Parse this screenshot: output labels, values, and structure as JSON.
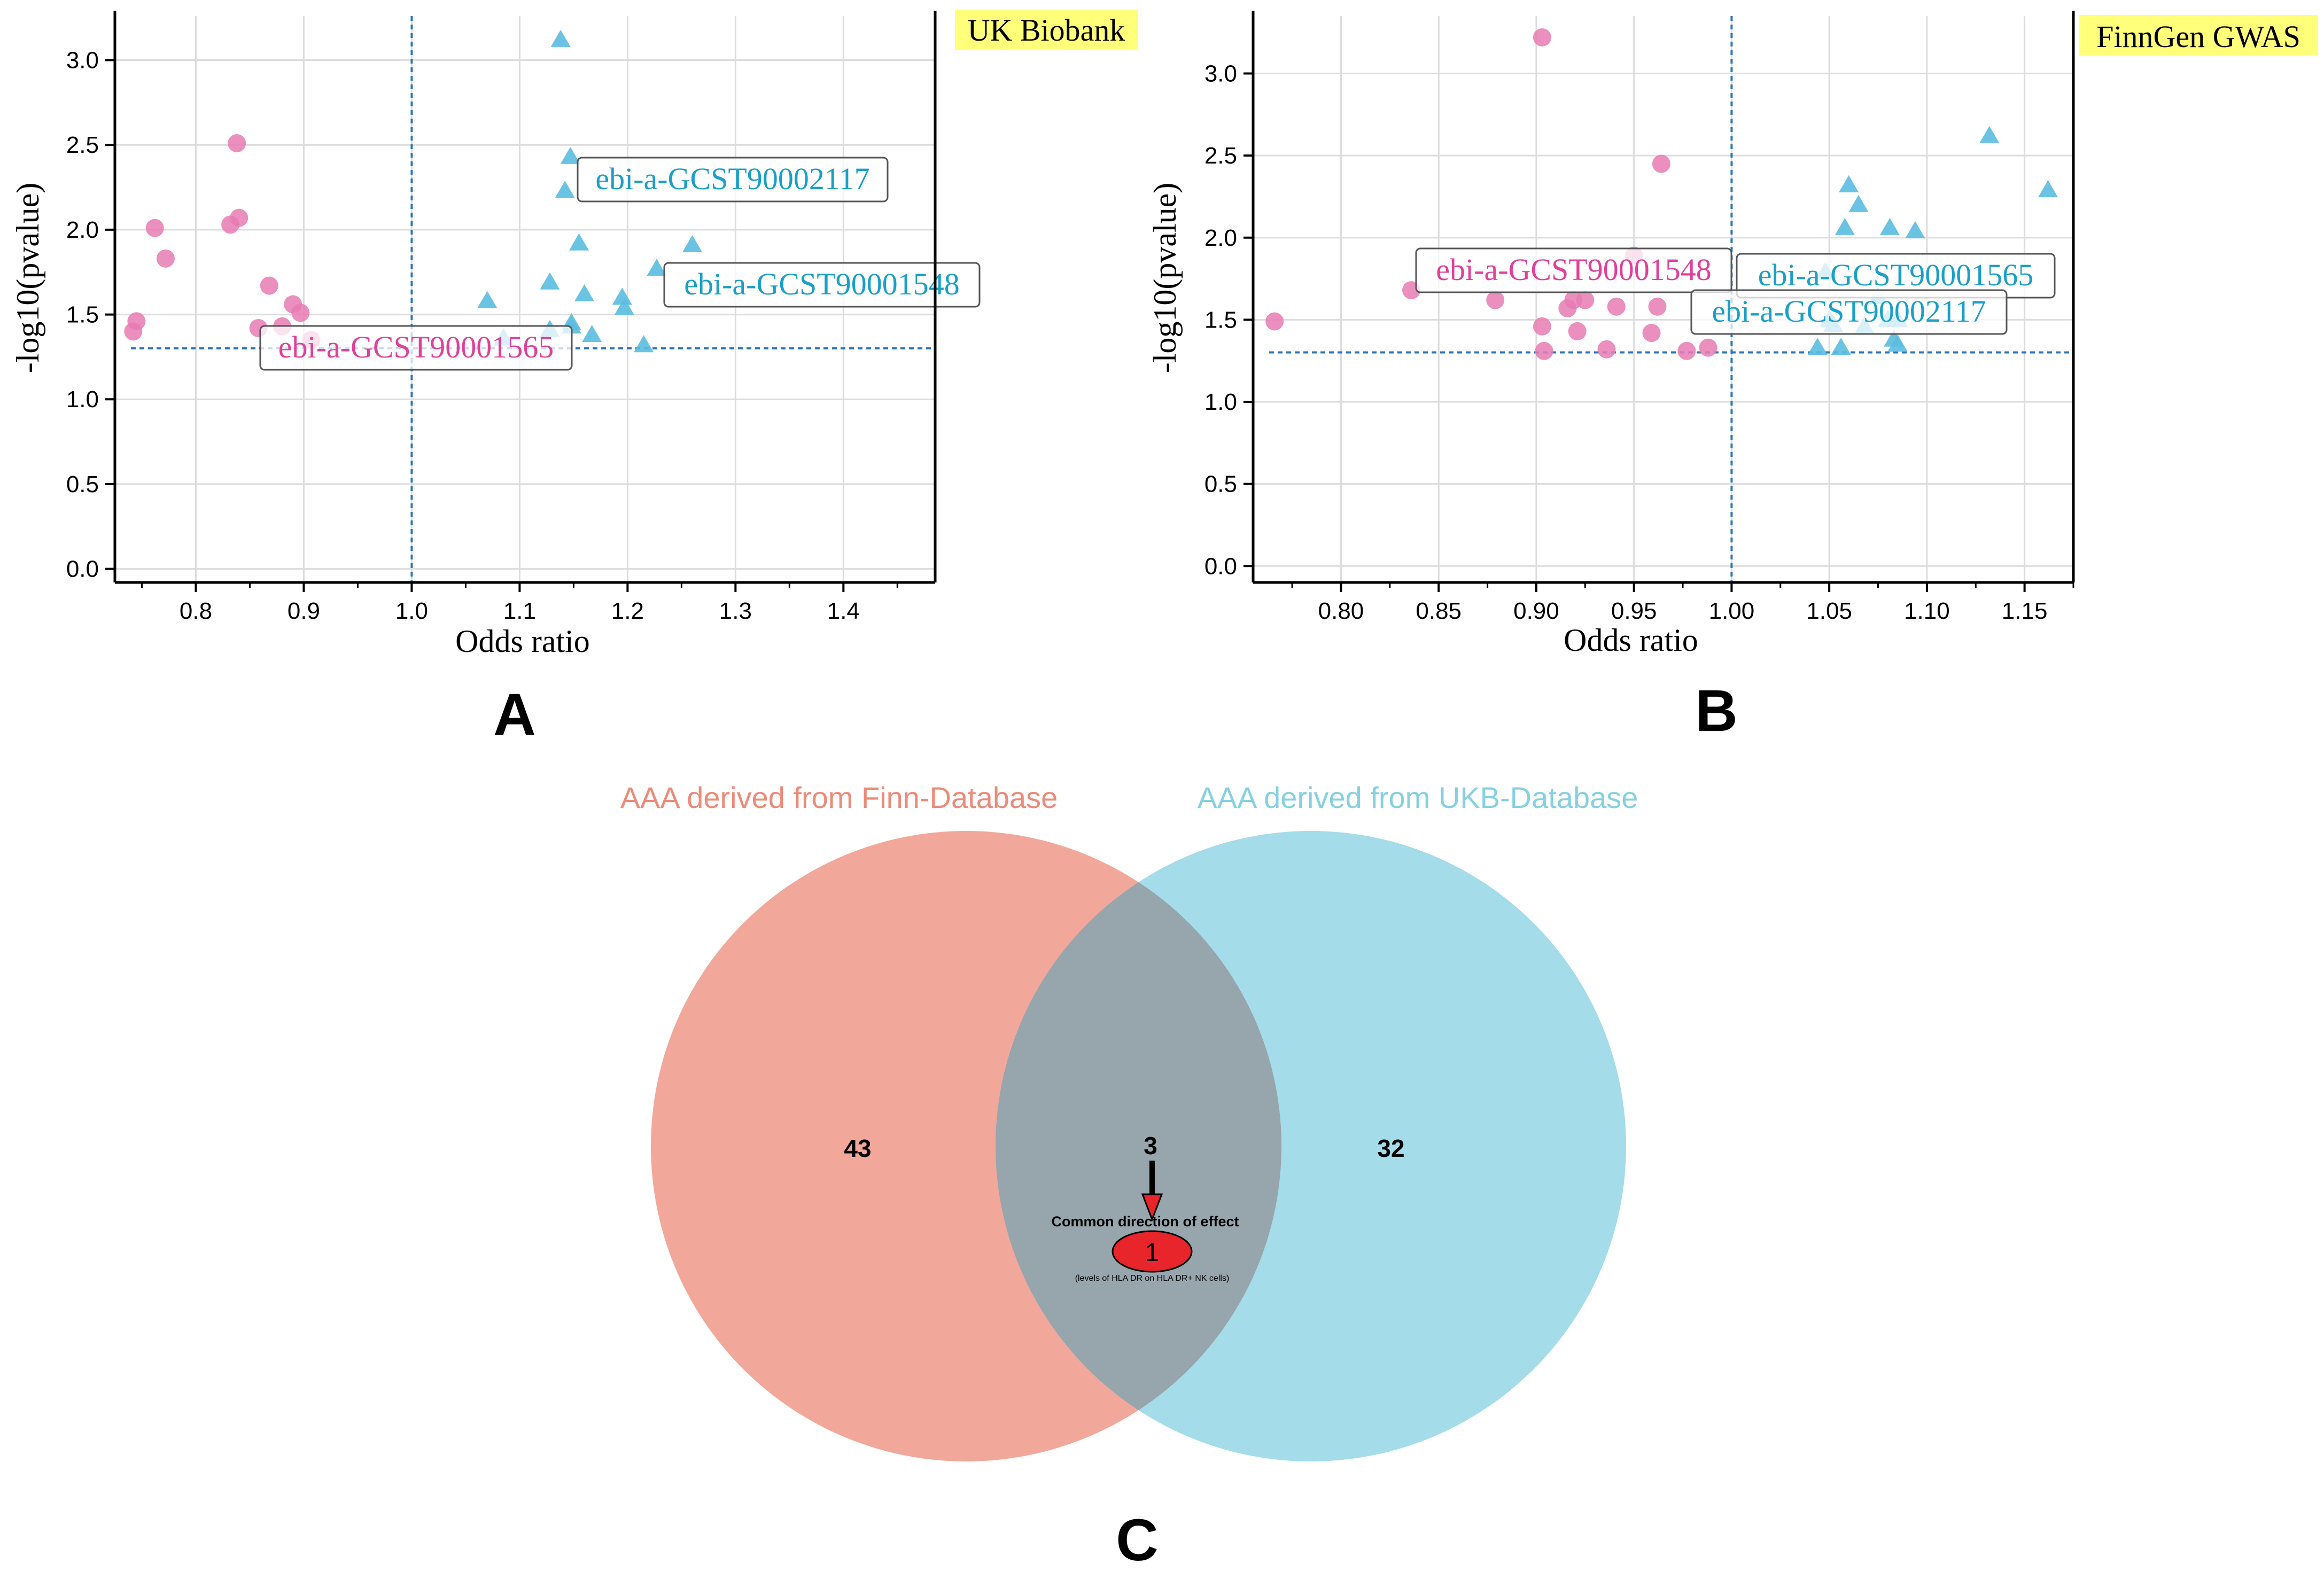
{
  "panel_labels": {
    "a": "A",
    "b": "B",
    "c": "C"
  },
  "colors": {
    "pink": "#e87bb4",
    "blue": "#5bbde0",
    "dashed": "#2e75b6",
    "label_pink": "#e0409a",
    "label_blue": "#1a9fc8",
    "badge": "#ffff7a",
    "venn_left": "#ec8b7a",
    "venn_right": "#86d0e2",
    "red": "#e8252a"
  },
  "chart_data": [
    {
      "id": "A",
      "type": "scatter",
      "title": "UK Biobank",
      "xlabel": "Odds ratio",
      "ylabel": "-log10(pvalue)",
      "xlim": [
        0.725,
        1.485
      ],
      "ylim": [
        -0.08,
        3.26
      ],
      "xticks": [
        {
          "v": 0.8,
          "l": "0.8"
        },
        {
          "v": 0.9,
          "l": "0.9"
        },
        {
          "v": 1.0,
          "l": "1.0"
        },
        {
          "v": 1.1,
          "l": "1.1"
        },
        {
          "v": 1.2,
          "l": "1.2"
        },
        {
          "v": 1.3,
          "l": "1.3"
        },
        {
          "v": 1.4,
          "l": "1.4"
        }
      ],
      "yticks": [
        {
          "v": 0.0,
          "l": "0.0"
        },
        {
          "v": 0.5,
          "l": "0.5"
        },
        {
          "v": 1.0,
          "l": "1.0"
        },
        {
          "v": 1.5,
          "l": "1.5"
        },
        {
          "v": 2.0,
          "l": "2.0"
        },
        {
          "v": 2.5,
          "l": "2.5"
        },
        {
          "v": 3.0,
          "l": "3.0"
        }
      ],
      "hline": 1.301,
      "vline": 1.0,
      "series": [
        {
          "name": "negative",
          "marker": "circle",
          "color": "#e87bb4",
          "points": [
            [
              0.742,
              1.4
            ],
            [
              0.745,
              1.46
            ],
            [
              0.762,
              2.01
            ],
            [
              0.772,
              1.83
            ],
            [
              0.832,
              2.03
            ],
            [
              0.838,
              2.51
            ],
            [
              0.84,
              2.07
            ],
            [
              0.858,
              1.42
            ],
            [
              0.868,
              1.67
            ],
            [
              0.88,
              1.43
            ],
            [
              0.89,
              1.56
            ],
            [
              0.897,
              1.51
            ],
            [
              0.907,
              1.35
            ]
          ]
        },
        {
          "name": "positive",
          "marker": "triangle",
          "color": "#5bbde0",
          "points": [
            [
              1.07,
              1.58
            ],
            [
              1.085,
              1.36
            ],
            [
              1.128,
              1.41
            ],
            [
              1.128,
              1.69
            ],
            [
              1.138,
              3.12
            ],
            [
              1.142,
              2.23
            ],
            [
              1.147,
              2.43
            ],
            [
              1.148,
              1.43
            ],
            [
              1.148,
              1.45
            ],
            [
              1.155,
              1.92
            ],
            [
              1.16,
              1.62
            ],
            [
              1.167,
              1.38
            ],
            [
              1.195,
              1.6
            ],
            [
              1.197,
              1.54
            ],
            [
              1.215,
              1.32
            ],
            [
              1.227,
              1.77
            ],
            [
              1.26,
              1.91
            ]
          ]
        }
      ],
      "annotations": [
        {
          "text": "ebi-a-GCST90002117",
          "color": "#1a9fc8",
          "anchor": [
            1.148,
            2.23
          ]
        },
        {
          "text": "ebi-a-GCST90001548",
          "color": "#1a9fc8",
          "anchor": [
            1.235,
            1.66
          ]
        },
        {
          "text": "ebi-a-GCST90001565",
          "color": "#e0409a",
          "anchor": [
            0.862,
            1.27
          ]
        }
      ]
    },
    {
      "id": "B",
      "type": "scatter",
      "title": "FinnGen GWAS",
      "xlabel": "Odds ratio",
      "ylabel": "-log10(pvalue)",
      "xlim": [
        0.755,
        1.175
      ],
      "ylim": [
        -0.1,
        3.35
      ],
      "xticks": [
        {
          "v": 0.8,
          "l": "0.80"
        },
        {
          "v": 0.85,
          "l": "0.85"
        },
        {
          "v": 0.9,
          "l": "0.90"
        },
        {
          "v": 0.95,
          "l": "0.95"
        },
        {
          "v": 1.0,
          "l": "1.00"
        },
        {
          "v": 1.05,
          "l": "1.05"
        },
        {
          "v": 1.1,
          "l": "1.10"
        },
        {
          "v": 1.15,
          "l": "1.15"
        }
      ],
      "yticks": [
        {
          "v": 0.0,
          "l": "0.0"
        },
        {
          "v": 0.5,
          "l": "0.5"
        },
        {
          "v": 1.0,
          "l": "1.0"
        },
        {
          "v": 1.5,
          "l": "1.5"
        },
        {
          "v": 2.0,
          "l": "2.0"
        },
        {
          "v": 2.5,
          "l": "2.5"
        },
        {
          "v": 3.0,
          "l": "3.0"
        }
      ],
      "hline": 1.301,
      "vline": 1.0,
      "series": [
        {
          "name": "negative",
          "marker": "circle",
          "color": "#e87bb4",
          "points": [
            [
              0.766,
              1.49
            ],
            [
              0.836,
              1.68
            ],
            [
              0.879,
              1.62
            ],
            [
              0.903,
              3.22
            ],
            [
              0.903,
              1.46
            ],
            [
              0.904,
              1.31
            ],
            [
              0.916,
              1.57
            ],
            [
              0.919,
              1.62
            ],
            [
              0.921,
              1.43
            ],
            [
              0.925,
              1.62
            ],
            [
              0.936,
              1.32
            ],
            [
              0.941,
              1.58
            ],
            [
              0.95,
              1.89
            ],
            [
              0.959,
              1.42
            ],
            [
              0.962,
              1.58
            ],
            [
              0.964,
              2.45
            ],
            [
              0.977,
              1.31
            ],
            [
              0.988,
              1.33
            ]
          ]
        },
        {
          "name": "positive",
          "marker": "triangle",
          "color": "#5bbde0",
          "points": [
            [
              1.044,
              1.33
            ],
            [
              1.048,
              1.79
            ],
            [
              1.05,
              1.5
            ],
            [
              1.052,
              1.47
            ],
            [
              1.056,
              1.33
            ],
            [
              1.058,
              2.06
            ],
            [
              1.06,
              2.32
            ],
            [
              1.065,
              2.2
            ],
            [
              1.068,
              1.46
            ],
            [
              1.075,
              1.64
            ],
            [
              1.08,
              1.5
            ],
            [
              1.081,
              2.06
            ],
            [
              1.083,
              1.38
            ],
            [
              1.085,
              1.35
            ],
            [
              1.085,
              1.5
            ],
            [
              1.094,
              2.04
            ],
            [
              1.132,
              2.62
            ],
            [
              1.162,
              2.29
            ]
          ]
        }
      ],
      "annotations": [
        {
          "text": "ebi-a-GCST90001548",
          "color": "#e0409a",
          "anchor": [
            0.837,
            1.77
          ]
        },
        {
          "text": "ebi-a-GCST90001565",
          "color": "#1a9fc8",
          "anchor": [
            1.005,
            1.75
          ]
        },
        {
          "text": "ebi-a-GCST90002117",
          "color": "#1a9fc8",
          "anchor": [
            0.981,
            1.52
          ]
        }
      ]
    },
    {
      "id": "C",
      "type": "venn",
      "sets": [
        {
          "name": "AAA derived from Finn-Database",
          "only": 43,
          "color": "#ec8b7a"
        },
        {
          "name": "AAA derived from UKB-Database",
          "only": 32,
          "color": "#86d0e2"
        }
      ],
      "intersection": 3,
      "subset": {
        "label": "Common direction of effect",
        "value": 1,
        "note": "(levels of HLA DR on HLA DR+ NK cells)"
      }
    }
  ]
}
